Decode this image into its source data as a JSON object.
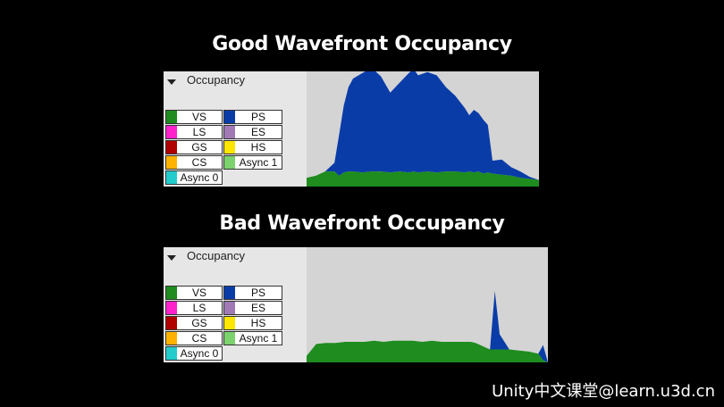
{
  "titles": {
    "good": "Good Wavefront Occupancy",
    "bad": "Bad Wavefront Occupancy"
  },
  "panel_header": "Occupancy",
  "legend": [
    {
      "label": "VS",
      "color": "#1e8c1e"
    },
    {
      "label": "PS",
      "color": "#0a3ca8"
    },
    {
      "label": "LS",
      "color": "#ff22cc"
    },
    {
      "label": "ES",
      "color": "#a07ab4"
    },
    {
      "label": "GS",
      "color": "#b00000"
    },
    {
      "label": "HS",
      "color": "#ffe600"
    },
    {
      "label": "CS",
      "color": "#ffb300"
    },
    {
      "label": "Async 1",
      "color": "#7cd26c"
    },
    {
      "label": "Async 0",
      "color": "#22cccc"
    }
  ],
  "colors": {
    "vs": "#1e8c1e",
    "ps": "#0a3ca8",
    "graph_bg": "#d4d4d4"
  },
  "chart_data": [
    {
      "type": "area",
      "title": "Good Wavefront Occupancy",
      "x": [
        0,
        4,
        8,
        12,
        14,
        16,
        18,
        20,
        24,
        28,
        32,
        36,
        40,
        44,
        46,
        48,
        52,
        56,
        60,
        64,
        68,
        70,
        72,
        74,
        76,
        78,
        80,
        84,
        88,
        92,
        96,
        100
      ],
      "series": [
        {
          "name": "VS",
          "values": [
            8,
            10,
            14,
            14,
            10,
            13,
            14,
            14,
            13,
            14,
            14,
            13,
            14,
            13,
            14,
            13,
            14,
            13,
            14,
            14,
            13,
            14,
            13,
            14,
            12,
            13,
            12,
            11,
            10,
            8,
            7,
            6
          ]
        },
        {
          "name": "PS",
          "values": [
            0,
            0,
            0,
            8,
            38,
            62,
            78,
            86,
            92,
            96,
            88,
            74,
            82,
            92,
            95,
            90,
            92,
            90,
            78,
            70,
            60,
            52,
            58,
            54,
            50,
            44,
            12,
            14,
            8,
            6,
            2,
            0
          ]
        }
      ],
      "ylim": [
        0,
        100
      ]
    },
    {
      "type": "area",
      "title": "Bad Wavefront Occupancy",
      "x": [
        0,
        4,
        8,
        12,
        16,
        20,
        24,
        28,
        32,
        36,
        40,
        44,
        48,
        52,
        56,
        60,
        64,
        68,
        70,
        72,
        74,
        76,
        78,
        80,
        84,
        88,
        92,
        96,
        98,
        100
      ],
      "series": [
        {
          "name": "VS",
          "values": [
            6,
            17,
            18,
            18,
            19,
            19,
            19,
            20,
            19,
            20,
            20,
            20,
            19,
            20,
            19,
            19,
            19,
            19,
            18,
            16,
            14,
            12,
            12,
            12,
            12,
            11,
            10,
            8,
            2,
            0
          ]
        },
        {
          "name": "PS",
          "values": [
            0,
            0,
            0,
            0,
            0,
            0,
            0,
            0,
            0,
            0,
            0,
            0,
            0,
            0,
            0,
            0,
            0,
            0,
            0,
            0,
            0,
            0,
            54,
            14,
            0,
            0,
            0,
            0,
            14,
            0
          ]
        }
      ],
      "ylim": [
        0,
        100
      ]
    }
  ],
  "watermark": "Unity中文课堂@learn.u3d.cn"
}
